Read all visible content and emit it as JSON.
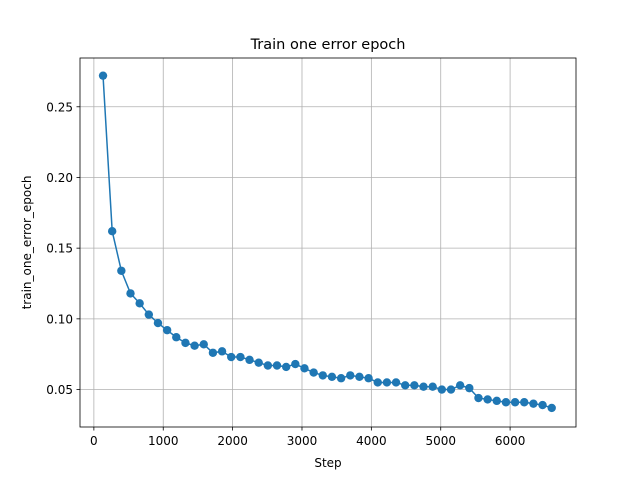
{
  "chart_data": {
    "type": "line",
    "title": "Train one error epoch",
    "xlabel": "Step",
    "ylabel": "train_one_error_epoch",
    "xlim": [
      -200,
      6950
    ],
    "ylim": [
      0.0235,
      0.2845
    ],
    "xticks": [
      0,
      1000,
      2000,
      3000,
      4000,
      5000,
      6000
    ],
    "yticks": [
      0.05,
      0.1,
      0.15,
      0.2,
      0.25
    ],
    "grid": true,
    "legend": "none",
    "series": [
      {
        "color": "#1f77b4",
        "marker": "circle",
        "x": [
          132,
          264,
          396,
          528,
          660,
          792,
          924,
          1056,
          1188,
          1320,
          1452,
          1584,
          1716,
          1848,
          1980,
          2112,
          2244,
          2376,
          2508,
          2640,
          2772,
          2904,
          3036,
          3168,
          3300,
          3432,
          3564,
          3696,
          3828,
          3960,
          4092,
          4224,
          4356,
          4488,
          4620,
          4752,
          4884,
          5016,
          5148,
          5280,
          5412,
          5544,
          5676,
          5808,
          5940,
          6072,
          6204,
          6336,
          6468,
          6600
        ],
        "y": [
          0.272,
          0.162,
          0.134,
          0.118,
          0.111,
          0.103,
          0.097,
          0.092,
          0.087,
          0.083,
          0.081,
          0.082,
          0.076,
          0.077,
          0.073,
          0.073,
          0.071,
          0.069,
          0.067,
          0.067,
          0.066,
          0.068,
          0.065,
          0.062,
          0.06,
          0.059,
          0.058,
          0.06,
          0.059,
          0.058,
          0.055,
          0.055,
          0.055,
          0.053,
          0.053,
          0.052,
          0.052,
          0.05,
          0.05,
          0.053,
          0.051,
          0.044,
          0.043,
          0.042,
          0.041,
          0.041,
          0.041,
          0.04,
          0.039,
          0.037
        ]
      }
    ]
  }
}
